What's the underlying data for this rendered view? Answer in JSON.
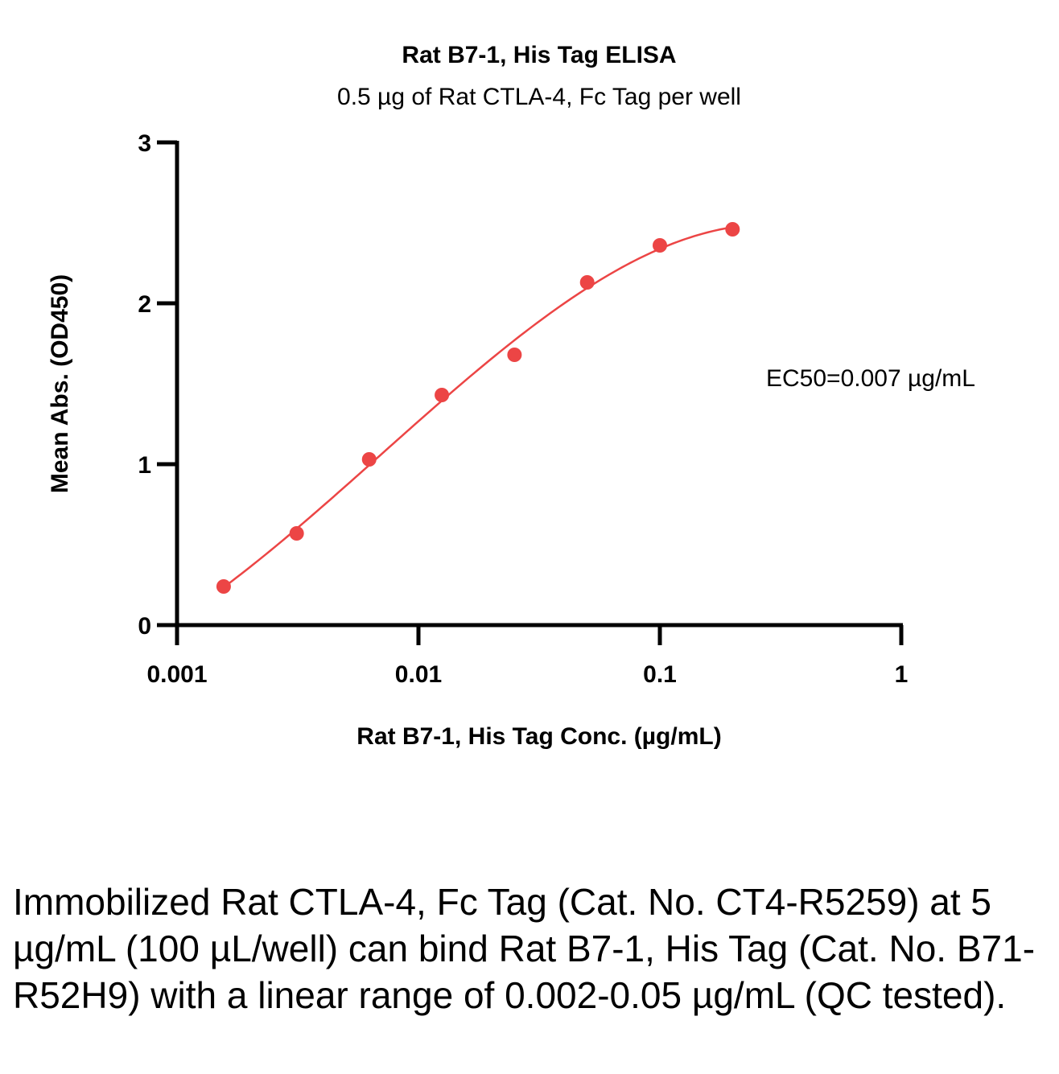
{
  "chart_data": {
    "type": "scatter",
    "title": "Rat B7-1, His Tag ELISA",
    "subtitle": "0.5 µg of Rat CTLA-4, Fc Tag per well",
    "xlabel": "Rat B7-1, His Tag Conc. (µg/mL)",
    "ylabel": "Mean Abs. (OD450)",
    "xscale": "log",
    "xlim": [
      0.001,
      1
    ],
    "ylim": [
      0,
      3
    ],
    "xticks": [
      0.001,
      0.01,
      0.1,
      1
    ],
    "xtick_labels": [
      "0.001",
      "0.01",
      "0.1",
      "1"
    ],
    "yticks": [
      0,
      1,
      2,
      3
    ],
    "ytick_labels": [
      "0",
      "1",
      "2",
      "3"
    ],
    "series": [
      {
        "name": "Rat B7-1, His Tag",
        "color": "#ec4545",
        "x": [
          0.00156,
          0.00313,
          0.00625,
          0.0125,
          0.025,
          0.05,
          0.1,
          0.2
        ],
        "y": [
          0.24,
          0.57,
          1.03,
          1.43,
          1.68,
          2.13,
          2.36,
          2.46
        ],
        "fit": "4PL"
      }
    ],
    "annotation": "EC50=0.007 µg/mL"
  },
  "caption": "Immobilized Rat CTLA-4, Fc Tag (Cat. No. CT4-R5259) at 5 µg/mL (100 µL/well) can bind Rat B7-1, His Tag (Cat. No. B71-R52H9) with a linear range of 0.002-0.05 µg/mL (QC tested)."
}
